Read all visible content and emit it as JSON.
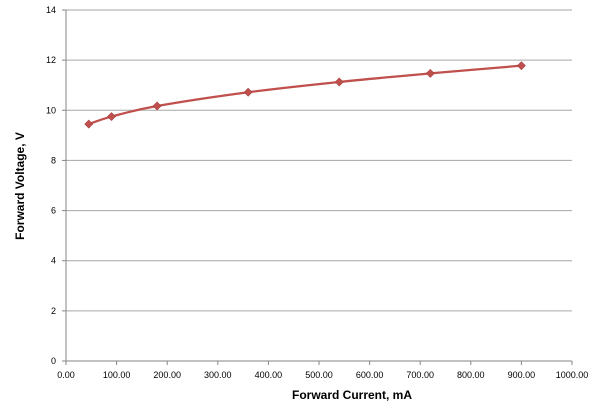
{
  "chart_data": {
    "type": "scatter",
    "title": "",
    "xlabel": "Forward Current, mA",
    "ylabel": "Forward Voltage, V",
    "xlim": [
      0,
      1000
    ],
    "ylim": [
      0,
      14
    ],
    "x_ticks": [
      "0.00",
      "100.00",
      "200.00",
      "300.00",
      "400.00",
      "500.00",
      "600.00",
      "700.00",
      "800.00",
      "900.00",
      "1000.00"
    ],
    "y_ticks": [
      "0",
      "2",
      "4",
      "6",
      "8",
      "10",
      "12",
      "14"
    ],
    "grid": "horizontal",
    "legend": "none",
    "series": [
      {
        "color": "#c0504d",
        "marker": "diamond",
        "line": "smooth",
        "points": [
          {
            "x": 45,
            "y": 9.45
          },
          {
            "x": 90,
            "y": 9.75
          },
          {
            "x": 180,
            "y": 10.17
          },
          {
            "x": 360,
            "y": 10.72
          },
          {
            "x": 540,
            "y": 11.13
          },
          {
            "x": 720,
            "y": 11.47
          },
          {
            "x": 900,
            "y": 11.78
          }
        ]
      }
    ]
  }
}
